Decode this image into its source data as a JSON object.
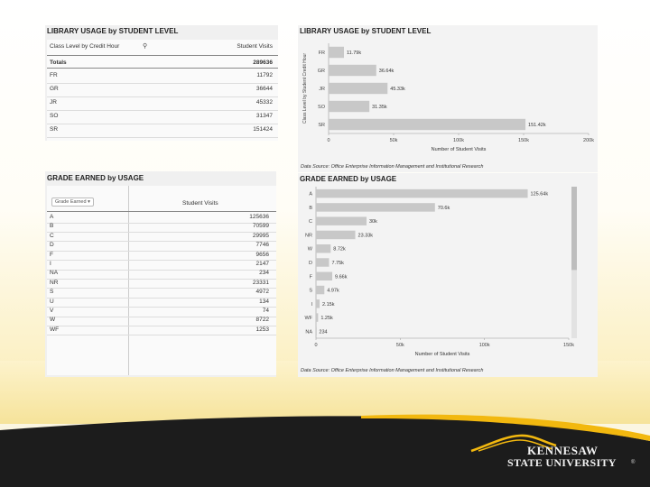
{
  "panel1": {
    "title": "LIBRARY USAGE by STUDENT LEVEL",
    "col1_header": "Class Level by Credit Hour",
    "col2_header": "Student Visits",
    "totals_label": "Totals",
    "totals_value": "289636",
    "rows": [
      {
        "label": "FR",
        "value": "11792"
      },
      {
        "label": "GR",
        "value": "36644"
      },
      {
        "label": "JR",
        "value": "45332"
      },
      {
        "label": "SO",
        "value": "31347"
      },
      {
        "label": "SR",
        "value": "151424"
      }
    ]
  },
  "panel2": {
    "title": "LIBRARY USAGE by STUDENT LEVEL",
    "ylabel": "Class Level by Student Credit Hour",
    "xlabel": "Number of Student Visits",
    "source": "Data Source: Office Enterprise Information Management and Institutional Research"
  },
  "panel3": {
    "title": "GRADE EARNED by USAGE",
    "filter_label": "Grade Earned",
    "col2_header": "Student Visits",
    "rows": [
      {
        "label": "A",
        "value": "125636"
      },
      {
        "label": "B",
        "value": "70599"
      },
      {
        "label": "C",
        "value": "29995"
      },
      {
        "label": "D",
        "value": "7746"
      },
      {
        "label": "F",
        "value": "9656"
      },
      {
        "label": "I",
        "value": "2147"
      },
      {
        "label": "NA",
        "value": "234"
      },
      {
        "label": "NR",
        "value": "23331"
      },
      {
        "label": "S",
        "value": "4972"
      },
      {
        "label": "U",
        "value": "134"
      },
      {
        "label": "V",
        "value": "74"
      },
      {
        "label": "W",
        "value": "8722"
      },
      {
        "label": "WF",
        "value": "1253"
      }
    ]
  },
  "panel4": {
    "title": "GRADE EARNED by USAGE",
    "xlabel": "Number of Student Visits",
    "source": "Data Source: Office Enterprise Information Management and Institutional Research"
  },
  "logo": {
    "line1": "KENNESAW",
    "line2": "STATE UNIVERSITY",
    "mark": "®"
  },
  "colors": {
    "bar": "#c8c8c8",
    "panel_bg": "#f0f0f0",
    "footer_dark": "#1c1c1c",
    "gold": "#f2b80f"
  },
  "chart_data": [
    {
      "type": "bar",
      "orientation": "horizontal",
      "title": "LIBRARY USAGE by STUDENT LEVEL",
      "xlabel": "Number of Student Visits",
      "ylabel": "Class Level by Student Credit Hour",
      "categories": [
        "FR",
        "GR",
        "JR",
        "SO",
        "SR"
      ],
      "values": [
        11792,
        36644,
        45332,
        31347,
        151424
      ],
      "data_labels": [
        "11.79k",
        "36.64k",
        "45.33k",
        "31.35k",
        "151.42k"
      ],
      "xticks": [
        "0",
        "50k",
        "100k",
        "150k",
        "200k"
      ],
      "xlim": [
        0,
        200000
      ]
    },
    {
      "type": "bar",
      "orientation": "horizontal",
      "title": "GRADE EARNED by USAGE",
      "xlabel": "Number of Student Visits",
      "categories": [
        "A",
        "B",
        "C",
        "NR",
        "W",
        "D",
        "F",
        "S",
        "I",
        "WF",
        "NA"
      ],
      "values": [
        125636,
        70599,
        29995,
        23331,
        8722,
        7746,
        9656,
        4972,
        2147,
        1253,
        234
      ],
      "data_labels": [
        "125.64k",
        "70.6k",
        "30k",
        "23.33k",
        "8.72k",
        "7.75k",
        "9.66k",
        "4.97k",
        "2.15k",
        "1.25k",
        "234"
      ],
      "xticks": [
        "0",
        "50k",
        "100k",
        "150k"
      ],
      "xlim": [
        0,
        150000
      ]
    }
  ]
}
